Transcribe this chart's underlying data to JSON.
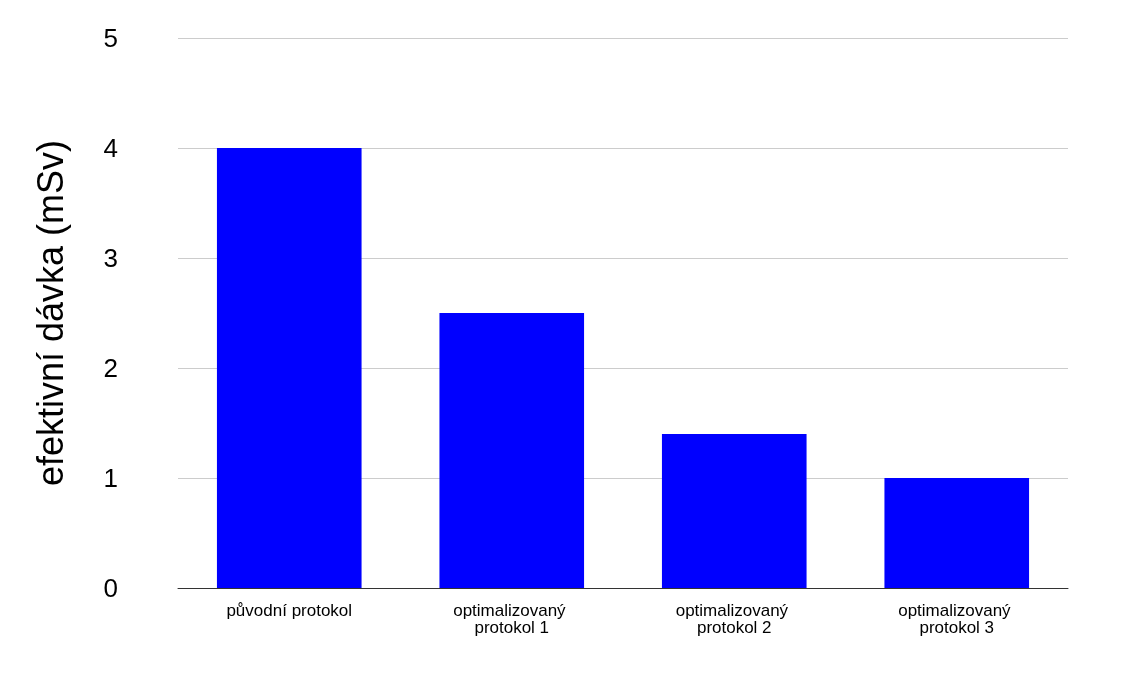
{
  "chart_data": {
    "type": "bar",
    "ylabel": "efektivní dávka (mSv)",
    "categories": [
      "původní protokol",
      "optimalizovaný protokol 1",
      "optimalizovaný protokol 2",
      "optimalizovaný protokol 3"
    ],
    "values": [
      4,
      2.5,
      1.4,
      1
    ],
    "color": "#0000ff",
    "ylim": [
      0,
      5
    ],
    "yticks": [
      0,
      1,
      2,
      3,
      4,
      5
    ],
    "grid": "y"
  }
}
